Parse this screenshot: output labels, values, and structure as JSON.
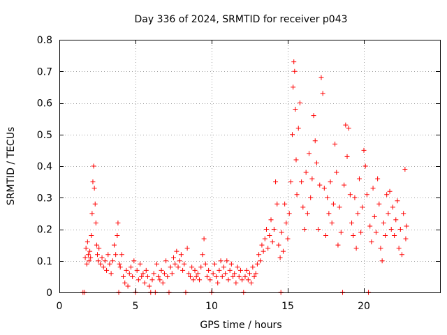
{
  "chart_data": {
    "type": "scatter",
    "title": "Day 336 of 2024, SRMTID for receiver p043",
    "xlabel": "GPS time / hours",
    "ylabel": "SRMTID / TECUs",
    "xlim": [
      0,
      25
    ],
    "ylim": [
      0,
      0.8
    ],
    "xticks": [
      0,
      5,
      10,
      15,
      20
    ],
    "xtick_labels": [
      "0",
      "5",
      "10",
      "15",
      "20"
    ],
    "yticks": [
      0,
      0.1,
      0.2,
      0.3,
      0.4,
      0.5,
      0.6,
      0.7,
      0.8
    ],
    "ytick_labels": [
      "0",
      "0.1",
      "0.2",
      "0.3",
      "0.4",
      "0.5",
      "0.6",
      "0.7",
      "0.8"
    ],
    "grid": true,
    "marker": "plus",
    "color": "#ff0000",
    "series": [
      {
        "name": "SRMTID",
        "points": [
          [
            1.55,
            0.0
          ],
          [
            1.65,
            0.0
          ],
          [
            1.7,
            0.11
          ],
          [
            1.75,
            0.14
          ],
          [
            1.8,
            0.09
          ],
          [
            1.85,
            0.16
          ],
          [
            1.9,
            0.12
          ],
          [
            1.95,
            0.1
          ],
          [
            2.0,
            0.13
          ],
          [
            2.05,
            0.11
          ],
          [
            2.1,
            0.18
          ],
          [
            2.15,
            0.25
          ],
          [
            2.2,
            0.35
          ],
          [
            2.25,
            0.4
          ],
          [
            2.3,
            0.33
          ],
          [
            2.35,
            0.28
          ],
          [
            2.4,
            0.22
          ],
          [
            2.45,
            0.15
          ],
          [
            2.5,
            0.12
          ],
          [
            2.55,
            0.1
          ],
          [
            2.6,
            0.14
          ],
          [
            2.7,
            0.09
          ],
          [
            2.8,
            0.11
          ],
          [
            2.9,
            0.08
          ],
          [
            3.0,
            0.1
          ],
          [
            3.1,
            0.07
          ],
          [
            3.2,
            0.12
          ],
          [
            3.3,
            0.09
          ],
          [
            3.4,
            0.06
          ],
          [
            3.5,
            0.1
          ],
          [
            3.6,
            0.15
          ],
          [
            3.7,
            0.12
          ],
          [
            3.8,
            0.18
          ],
          [
            3.85,
            0.22
          ],
          [
            3.9,
            0.0
          ],
          [
            3.95,
            0.09
          ],
          [
            4.0,
            0.08
          ],
          [
            4.1,
            0.12
          ],
          [
            4.2,
            0.05
          ],
          [
            4.3,
            0.03
          ],
          [
            4.4,
            0.07
          ],
          [
            4.5,
            0.02
          ],
          [
            4.6,
            0.06
          ],
          [
            4.7,
            0.08
          ],
          [
            4.8,
            0.05
          ],
          [
            4.9,
            0.1
          ],
          [
            5.0,
            0.0
          ],
          [
            5.1,
            0.07
          ],
          [
            5.2,
            0.04
          ],
          [
            5.3,
            0.09
          ],
          [
            5.4,
            0.05
          ],
          [
            5.5,
            0.06
          ],
          [
            5.6,
            0.03
          ],
          [
            5.7,
            0.07
          ],
          [
            5.8,
            0.05
          ],
          [
            5.9,
            0.02
          ],
          [
            6.0,
            0.0
          ],
          [
            6.1,
            0.04
          ],
          [
            6.2,
            0.06
          ],
          [
            6.3,
            0.0
          ],
          [
            6.4,
            0.09
          ],
          [
            6.5,
            0.05
          ],
          [
            6.6,
            0.04
          ],
          [
            6.7,
            0.07
          ],
          [
            6.8,
            0.03
          ],
          [
            6.9,
            0.06
          ],
          [
            7.0,
            0.1
          ],
          [
            7.1,
            0.05
          ],
          [
            7.2,
            0.0
          ],
          [
            7.3,
            0.08
          ],
          [
            7.4,
            0.06
          ],
          [
            7.5,
            0.11
          ],
          [
            7.6,
            0.09
          ],
          [
            7.7,
            0.13
          ],
          [
            7.8,
            0.08
          ],
          [
            7.9,
            0.1
          ],
          [
            8.0,
            0.12
          ],
          [
            8.1,
            0.07
          ],
          [
            8.2,
            0.09
          ],
          [
            8.3,
            0.0
          ],
          [
            8.4,
            0.14
          ],
          [
            8.5,
            0.06
          ],
          [
            8.6,
            0.05
          ],
          [
            8.7,
            0.08
          ],
          [
            8.8,
            0.04
          ],
          [
            8.9,
            0.07
          ],
          [
            9.0,
            0.05
          ],
          [
            9.1,
            0.06
          ],
          [
            9.2,
            0.04
          ],
          [
            9.3,
            0.08
          ],
          [
            9.4,
            0.12
          ],
          [
            9.5,
            0.17
          ],
          [
            9.6,
            0.09
          ],
          [
            9.7,
            0.05
          ],
          [
            9.8,
            0.07
          ],
          [
            9.9,
            0.04
          ],
          [
            10.0,
            0.0
          ],
          [
            10.1,
            0.06
          ],
          [
            10.2,
            0.09
          ],
          [
            10.3,
            0.05
          ],
          [
            10.4,
            0.03
          ],
          [
            10.5,
            0.07
          ],
          [
            10.6,
            0.1
          ],
          [
            10.7,
            0.05
          ],
          [
            10.8,
            0.08
          ],
          [
            10.9,
            0.06
          ],
          [
            11.0,
            0.1
          ],
          [
            11.1,
            0.04
          ],
          [
            11.2,
            0.07
          ],
          [
            11.3,
            0.09
          ],
          [
            11.4,
            0.05
          ],
          [
            11.5,
            0.06
          ],
          [
            11.6,
            0.03
          ],
          [
            11.7,
            0.08
          ],
          [
            11.8,
            0.05
          ],
          [
            11.9,
            0.07
          ],
          [
            12.0,
            0.04
          ],
          [
            12.1,
            0.0
          ],
          [
            12.2,
            0.05
          ],
          [
            12.3,
            0.07
          ],
          [
            12.4,
            0.04
          ],
          [
            12.5,
            0.06
          ],
          [
            12.6,
            0.03
          ],
          [
            12.7,
            0.08
          ],
          [
            12.8,
            0.05
          ],
          [
            12.9,
            0.06
          ],
          [
            13.0,
            0.09
          ],
          [
            13.1,
            0.12
          ],
          [
            13.2,
            0.1
          ],
          [
            13.3,
            0.15
          ],
          [
            13.4,
            0.13
          ],
          [
            13.5,
            0.17
          ],
          [
            13.6,
            0.2
          ],
          [
            13.7,
            0.14
          ],
          [
            13.8,
            0.18
          ],
          [
            13.9,
            0.23
          ],
          [
            14.0,
            0.16
          ],
          [
            14.1,
            0.2
          ],
          [
            14.2,
            0.35
          ],
          [
            14.3,
            0.28
          ],
          [
            14.4,
            0.15
          ],
          [
            14.5,
            0.11
          ],
          [
            14.55,
            0.0
          ],
          [
            14.6,
            0.19
          ],
          [
            14.7,
            0.13
          ],
          [
            14.8,
            0.28
          ],
          [
            14.9,
            0.22
          ],
          [
            15.0,
            0.17
          ],
          [
            15.1,
            0.25
          ],
          [
            15.2,
            0.35
          ],
          [
            15.3,
            0.5
          ],
          [
            15.35,
            0.65
          ],
          [
            15.4,
            0.73
          ],
          [
            15.45,
            0.7
          ],
          [
            15.5,
            0.58
          ],
          [
            15.55,
            0.42
          ],
          [
            15.6,
            0.31
          ],
          [
            15.7,
            0.52
          ],
          [
            15.8,
            0.6
          ],
          [
            15.9,
            0.35
          ],
          [
            16.0,
            0.27
          ],
          [
            16.1,
            0.2
          ],
          [
            16.2,
            0.38
          ],
          [
            16.3,
            0.25
          ],
          [
            16.4,
            0.44
          ],
          [
            16.5,
            0.3
          ],
          [
            16.6,
            0.36
          ],
          [
            16.7,
            0.56
          ],
          [
            16.8,
            0.48
          ],
          [
            16.9,
            0.41
          ],
          [
            17.0,
            0.2
          ],
          [
            17.1,
            0.34
          ],
          [
            17.2,
            0.68
          ],
          [
            17.3,
            0.63
          ],
          [
            17.4,
            0.33
          ],
          [
            17.5,
            0.18
          ],
          [
            17.6,
            0.3
          ],
          [
            17.7,
            0.25
          ],
          [
            17.8,
            0.35
          ],
          [
            17.9,
            0.22
          ],
          [
            18.0,
            0.28
          ],
          [
            18.1,
            0.47
          ],
          [
            18.2,
            0.38
          ],
          [
            18.3,
            0.15
          ],
          [
            18.4,
            0.27
          ],
          [
            18.5,
            0.19
          ],
          [
            18.6,
            0.0
          ],
          [
            18.7,
            0.34
          ],
          [
            18.8,
            0.53
          ],
          [
            18.9,
            0.43
          ],
          [
            19.0,
            0.52
          ],
          [
            19.1,
            0.31
          ],
          [
            19.2,
            0.22
          ],
          [
            19.3,
            0.18
          ],
          [
            19.4,
            0.3
          ],
          [
            19.5,
            0.14
          ],
          [
            19.6,
            0.25
          ],
          [
            19.7,
            0.36
          ],
          [
            19.8,
            0.19
          ],
          [
            19.9,
            0.27
          ],
          [
            20.0,
            0.45
          ],
          [
            20.1,
            0.4
          ],
          [
            20.2,
            0.31
          ],
          [
            20.3,
            0.0
          ],
          [
            20.4,
            0.21
          ],
          [
            20.5,
            0.16
          ],
          [
            20.6,
            0.33
          ],
          [
            20.7,
            0.24
          ],
          [
            20.8,
            0.19
          ],
          [
            20.9,
            0.36
          ],
          [
            21.0,
            0.28
          ],
          [
            21.1,
            0.14
          ],
          [
            21.2,
            0.1
          ],
          [
            21.3,
            0.22
          ],
          [
            21.4,
            0.18
          ],
          [
            21.5,
            0.31
          ],
          [
            21.6,
            0.25
          ],
          [
            21.7,
            0.32
          ],
          [
            21.8,
            0.2
          ],
          [
            21.9,
            0.27
          ],
          [
            22.0,
            0.18
          ],
          [
            22.1,
            0.23
          ],
          [
            22.2,
            0.29
          ],
          [
            22.3,
            0.14
          ],
          [
            22.4,
            0.2
          ],
          [
            22.5,
            0.12
          ],
          [
            22.6,
            0.25
          ],
          [
            22.7,
            0.39
          ],
          [
            22.75,
            0.17
          ],
          [
            22.8,
            0.21
          ]
        ]
      }
    ]
  }
}
